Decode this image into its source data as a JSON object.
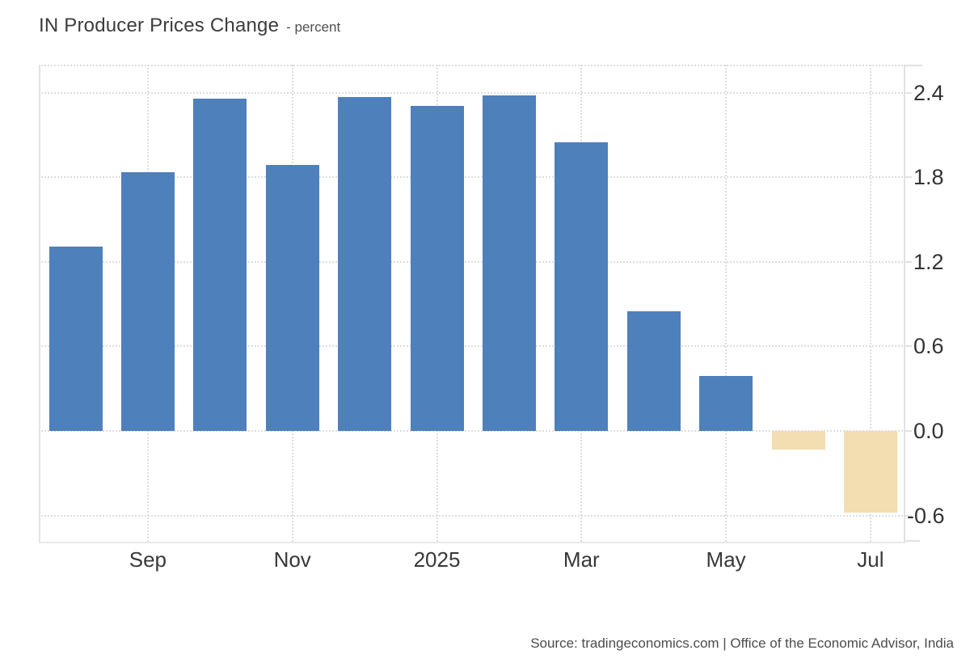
{
  "header": {
    "title": "IN Producer Prices Change",
    "subtitle": "- percent"
  },
  "footer": {
    "source": "Source: tradingeconomics.com | Office of the Economic Advisor, India"
  },
  "chart_data": {
    "type": "bar",
    "title": "IN Producer Prices Change",
    "unit": "percent",
    "categories": [
      "Aug 2024",
      "Sep 2024",
      "Oct 2024",
      "Nov 2024",
      "Dec 2024",
      "Jan 2025",
      "Feb 2025",
      "Mar 2025",
      "Apr 2025",
      "May 2025",
      "Jun 2025",
      "Jul 2025"
    ],
    "values": [
      1.31,
      1.84,
      2.36,
      1.89,
      2.37,
      2.31,
      2.38,
      2.05,
      0.85,
      0.39,
      -0.13,
      -0.58
    ],
    "bar_colors": {
      "positive": "#4e80bc",
      "negative": "#f3deb1"
    },
    "xticks": [
      {
        "label": "Sep",
        "index": 1
      },
      {
        "label": "Nov",
        "index": 3
      },
      {
        "label": "2025",
        "index": 5
      },
      {
        "label": "Mar",
        "index": 7
      },
      {
        "label": "May",
        "index": 9
      },
      {
        "label": "Jul",
        "index": 11
      }
    ],
    "yticks": [
      {
        "label": "2.4",
        "value": 2.4
      },
      {
        "label": "1.8",
        "value": 1.8
      },
      {
        "label": "1.2",
        "value": 1.2
      },
      {
        "label": "0.6",
        "value": 0.6
      },
      {
        "label": "0.0",
        "value": 0.0
      },
      {
        "label": "-0.6",
        "value": -0.6
      }
    ],
    "ylim": [
      -0.79,
      2.6
    ],
    "axis_position": "right",
    "grid": "dotted",
    "legend": "none"
  }
}
